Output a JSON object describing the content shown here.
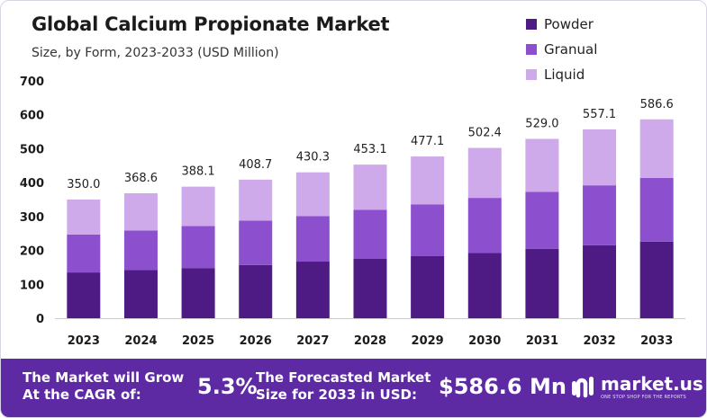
{
  "chart_data": {
    "type": "bar",
    "stacked": true,
    "title": "Global Calcium Propionate Market",
    "subtitle": "Size, by Form, 2023-2033  (USD Million)",
    "categories": [
      "2023",
      "2024",
      "2025",
      "2026",
      "2027",
      "2028",
      "2029",
      "2030",
      "2031",
      "2032",
      "2033"
    ],
    "series": [
      {
        "name": "Powder",
        "color": "#4e1a84",
        "values": [
          135,
          142,
          148,
          157,
          167,
          175,
          183,
          193,
          205,
          215,
          226
        ]
      },
      {
        "name": "Granual",
        "color": "#8c50cf",
        "values": [
          112,
          117,
          124,
          131,
          134,
          145,
          153,
          162,
          168,
          177,
          188
        ]
      },
      {
        "name": "Liquid",
        "color": "#cfaaeb",
        "values": [
          103,
          109.6,
          116.1,
          120.7,
          129.3,
          133.1,
          141.1,
          147.4,
          156,
          165.1,
          172.6
        ]
      }
    ],
    "totals": [
      "350.0",
      "368.6",
      "388.1",
      "408.7",
      "430.3",
      "453.1",
      "477.1",
      "502.4",
      "529.0",
      "557.1",
      "586.6"
    ],
    "yticks": [
      "0",
      "100",
      "200",
      "300",
      "400",
      "500",
      "600",
      "700"
    ],
    "ylim": [
      0,
      700
    ],
    "legend_position": "top-right",
    "grid": false
  },
  "footer": {
    "grow_text": "The Market will Grow At the CAGR of:",
    "cagr": "5.3%",
    "forecast_text": "The Forecasted Market Size for 2033 in USD:",
    "forecast_value": "$586.6 Mn",
    "logo_text": "market.us",
    "logo_tagline": "ONE STOP SHOP FOR THE REPORTS"
  }
}
